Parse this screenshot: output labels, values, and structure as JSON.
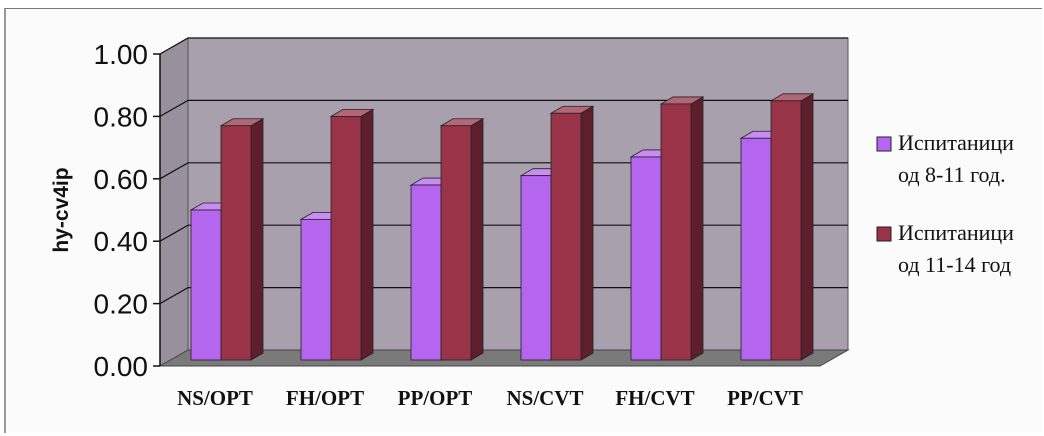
{
  "chart_data": {
    "type": "bar",
    "title": "",
    "xlabel": "",
    "ylabel": "hy-cv4ip",
    "categories": [
      "NS/OPT",
      "FH/OPT",
      "PP/OPT",
      "NS/CVT",
      "FH/CVT",
      "PP/CVT"
    ],
    "series": [
      {
        "name": "Испитаници од 8-11 год.",
        "legend_lines": [
          "Испитаници",
          "од 8-11 год."
        ],
        "color": "#b566ee",
        "values": [
          0.5,
          0.47,
          0.58,
          0.61,
          0.67,
          0.73
        ]
      },
      {
        "name": "Испитаници од 11-14 год",
        "legend_lines": [
          "Испитаници",
          "од 11-14 год"
        ],
        "color": "#993347",
        "values": [
          0.77,
          0.8,
          0.77,
          0.81,
          0.84,
          0.85
        ]
      }
    ],
    "ylim": [
      0,
      1
    ],
    "yticks": [
      "0.00",
      "0.20",
      "0.40",
      "0.60",
      "0.80",
      "1.00"
    ],
    "grid": true,
    "legend_position": "right",
    "style": "3d-clustered-column",
    "colors": {
      "wall": "#a9a0ae",
      "floor": "#7a7a7a",
      "gridline": "#111111"
    }
  }
}
